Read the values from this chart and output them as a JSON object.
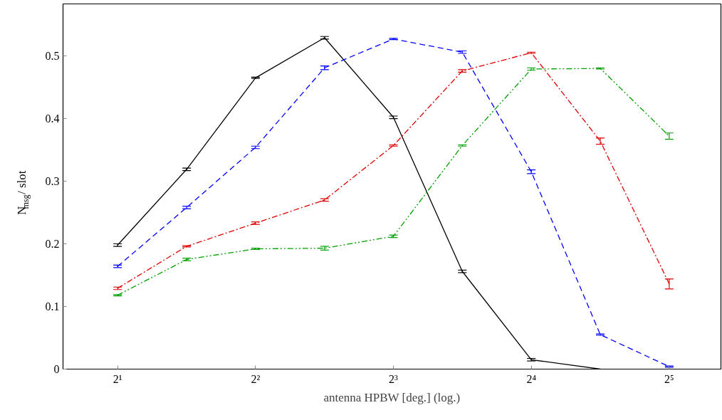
{
  "chart_data": {
    "type": "line",
    "xlabel": "antenna HPBW [deg.] (log.)",
    "ylabel": "N$_{msg}$/ slot",
    "log": "x",
    "grid": false,
    "marker": "none",
    "x": [
      2,
      2.83,
      4,
      5.66,
      8,
      11.31,
      16,
      22.63,
      32
    ],
    "xlim": [
      1.52,
      41.5
    ],
    "xticks": [
      {
        "value": 2,
        "label": "2¹"
      },
      {
        "value": 4,
        "label": "2²"
      },
      {
        "value": 8,
        "label": "2³"
      },
      {
        "value": 16,
        "label": "2⁴"
      },
      {
        "value": 32,
        "label": "2⁵"
      }
    ],
    "ylim": [
      0,
      0.583
    ],
    "yticks": [
      0,
      0.1,
      0.2,
      0.3,
      0.4,
      0.5
    ],
    "series": [
      {
        "color": "#000000",
        "line_style": "solid",
        "values": [
          0.198,
          0.319,
          0.465,
          0.529,
          0.402,
          0.156,
          0.015,
          0.0,
          null
        ],
        "errors": [
          0.002,
          0.002,
          0.001,
          0.002,
          0.002,
          0.002,
          0.002,
          null,
          null
        ]
      },
      {
        "color": "#0000ff",
        "line_style": "dashed",
        "values": [
          0.164,
          0.258,
          0.354,
          0.481,
          0.527,
          0.506,
          0.315,
          0.055,
          0.004
        ],
        "errors": [
          0.002,
          0.002,
          0.002,
          0.003,
          0.001,
          0.002,
          0.003,
          0.001,
          0.001
        ]
      },
      {
        "color": "#dd0000",
        "line_style": "dashdot",
        "values": [
          0.129,
          0.196,
          0.233,
          0.27,
          0.357,
          0.476,
          0.505,
          0.364,
          0.136
        ],
        "errors": [
          0.002,
          0.001,
          0.002,
          0.002,
          0.001,
          0.002,
          0.001,
          0.005,
          0.008
        ]
      },
      {
        "color": "#00a000",
        "line_style": "dashdotdot",
        "values": [
          0.118,
          0.175,
          0.192,
          0.193,
          0.212,
          0.357,
          0.479,
          0.48,
          0.372
        ],
        "errors": [
          0.001,
          0.002,
          0.001,
          0.003,
          0.002,
          0.001,
          0.002,
          0.001,
          0.005
        ]
      }
    ]
  }
}
